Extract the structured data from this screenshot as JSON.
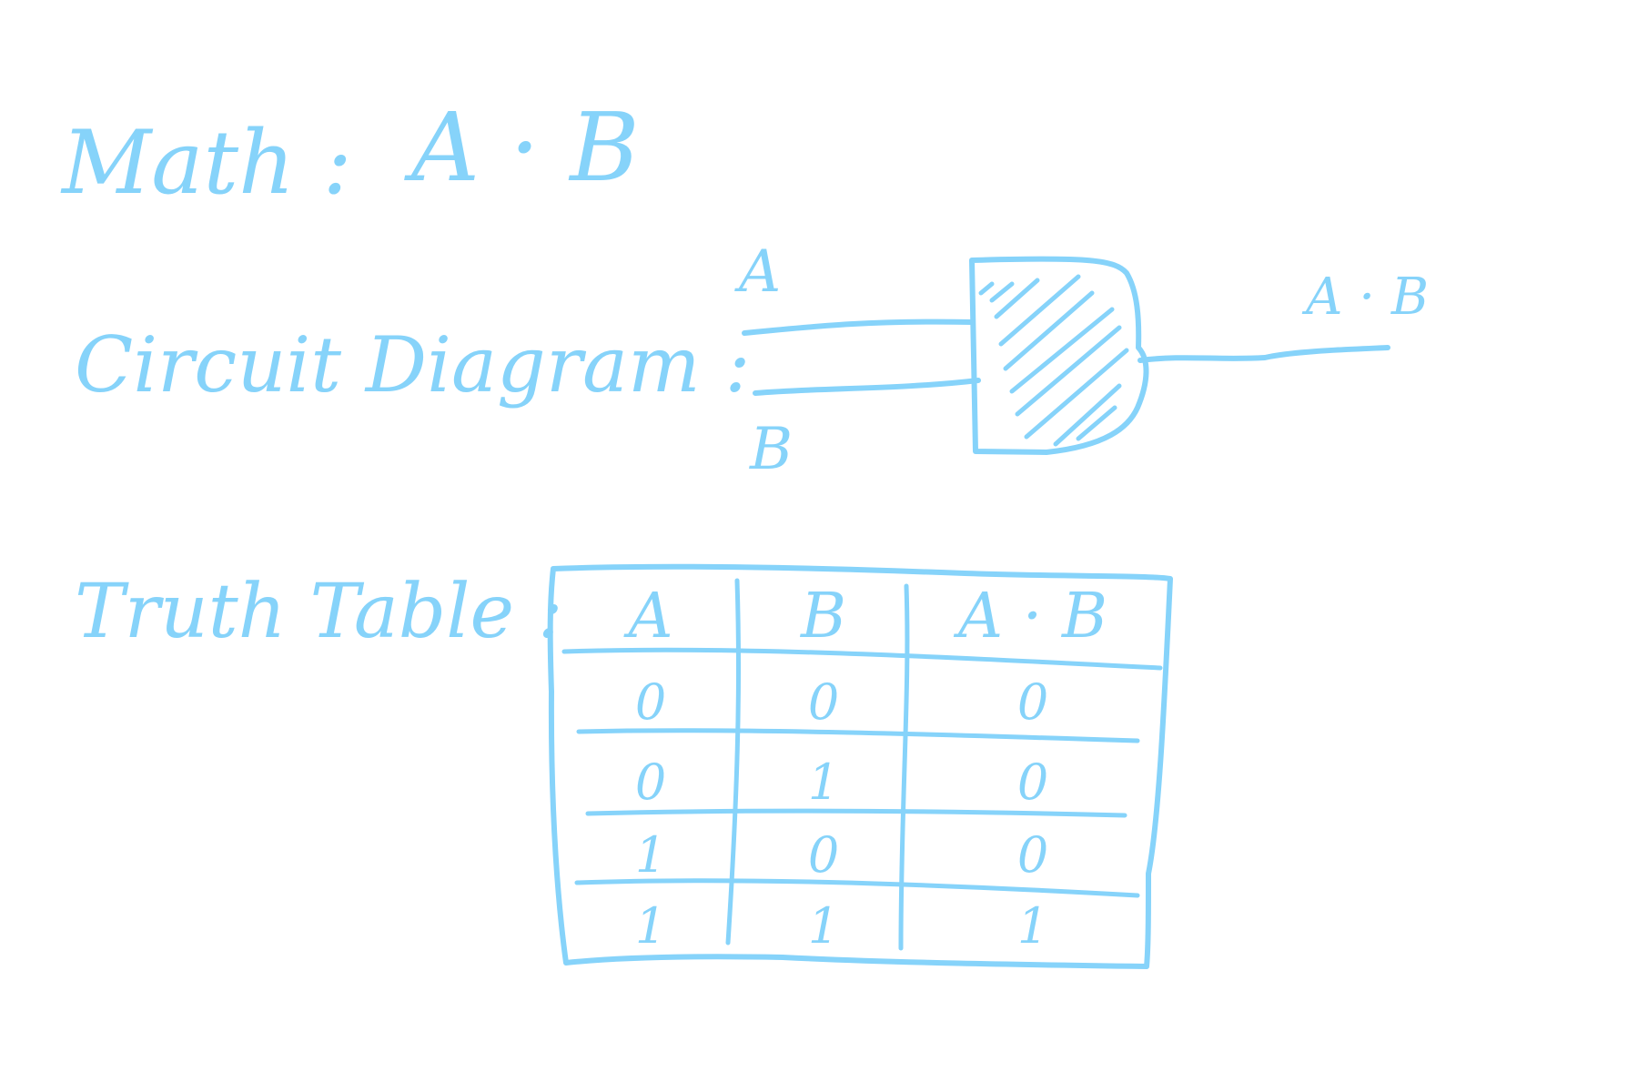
{
  "colors": {
    "ink": "#86d3fa",
    "background": "#ffffff"
  },
  "math": {
    "label": "Math :",
    "expression": "A · B"
  },
  "circuit": {
    "label": "Circuit Diagram :",
    "input_a": "A",
    "input_b": "B",
    "output": "A · B",
    "gate": "AND"
  },
  "truth_table": {
    "label": "Truth Table :",
    "headers": [
      "A",
      "B",
      "A · B"
    ],
    "rows": [
      [
        "0",
        "0",
        "0"
      ],
      [
        "0",
        "1",
        "0"
      ],
      [
        "1",
        "0",
        "0"
      ],
      [
        "1",
        "1",
        "1"
      ]
    ]
  }
}
